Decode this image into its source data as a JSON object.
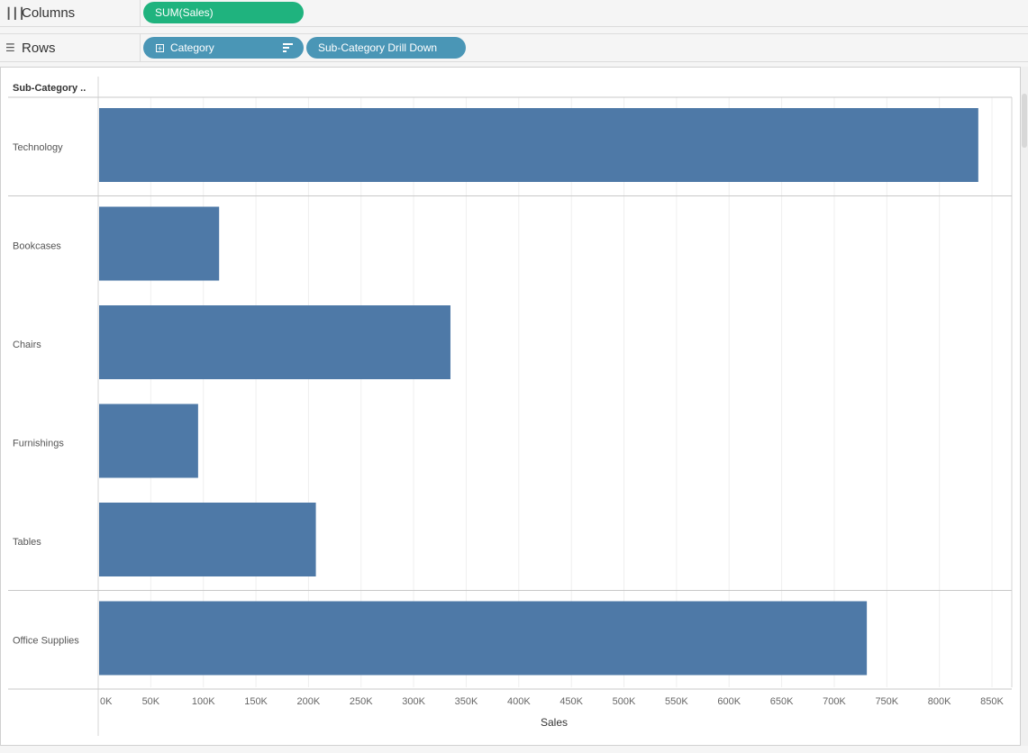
{
  "shelves": {
    "columns": {
      "label": "Columns",
      "icon": "columns-icon",
      "pills": [
        {
          "label": "SUM(Sales)",
          "color": "#1fb37e"
        }
      ]
    },
    "rows": {
      "label": "Rows",
      "icon": "rows-icon",
      "pills": [
        {
          "label": "Category",
          "color": "#4a96b6",
          "icons": [
            "expand-plus-icon",
            "sort-icon"
          ]
        },
        {
          "label": "Sub-Category Drill Down",
          "color": "#4a96b6"
        }
      ]
    }
  },
  "chart_data": {
    "type": "bar",
    "orientation": "horizontal",
    "header": "Sub-Category ..",
    "categories": [
      "Technology",
      "Bookcases",
      "Chairs",
      "Furnishings",
      "Tables",
      "Office Supplies"
    ],
    "values": [
      837000,
      115000,
      335000,
      95000,
      207000,
      731000
    ],
    "groups": [
      {
        "rows": [
          0
        ]
      },
      {
        "rows": [
          1,
          2,
          3,
          4
        ]
      },
      {
        "rows": [
          5
        ]
      }
    ],
    "xlabel": "Sales",
    "xticks": [
      "0K",
      "50K",
      "100K",
      "150K",
      "200K",
      "250K",
      "300K",
      "350K",
      "400K",
      "450K",
      "500K",
      "550K",
      "600K",
      "650K",
      "700K",
      "750K",
      "800K",
      "850K"
    ],
    "xlim": [
      0,
      870000
    ],
    "bar_color": "#4e79a7",
    "grid": true
  }
}
